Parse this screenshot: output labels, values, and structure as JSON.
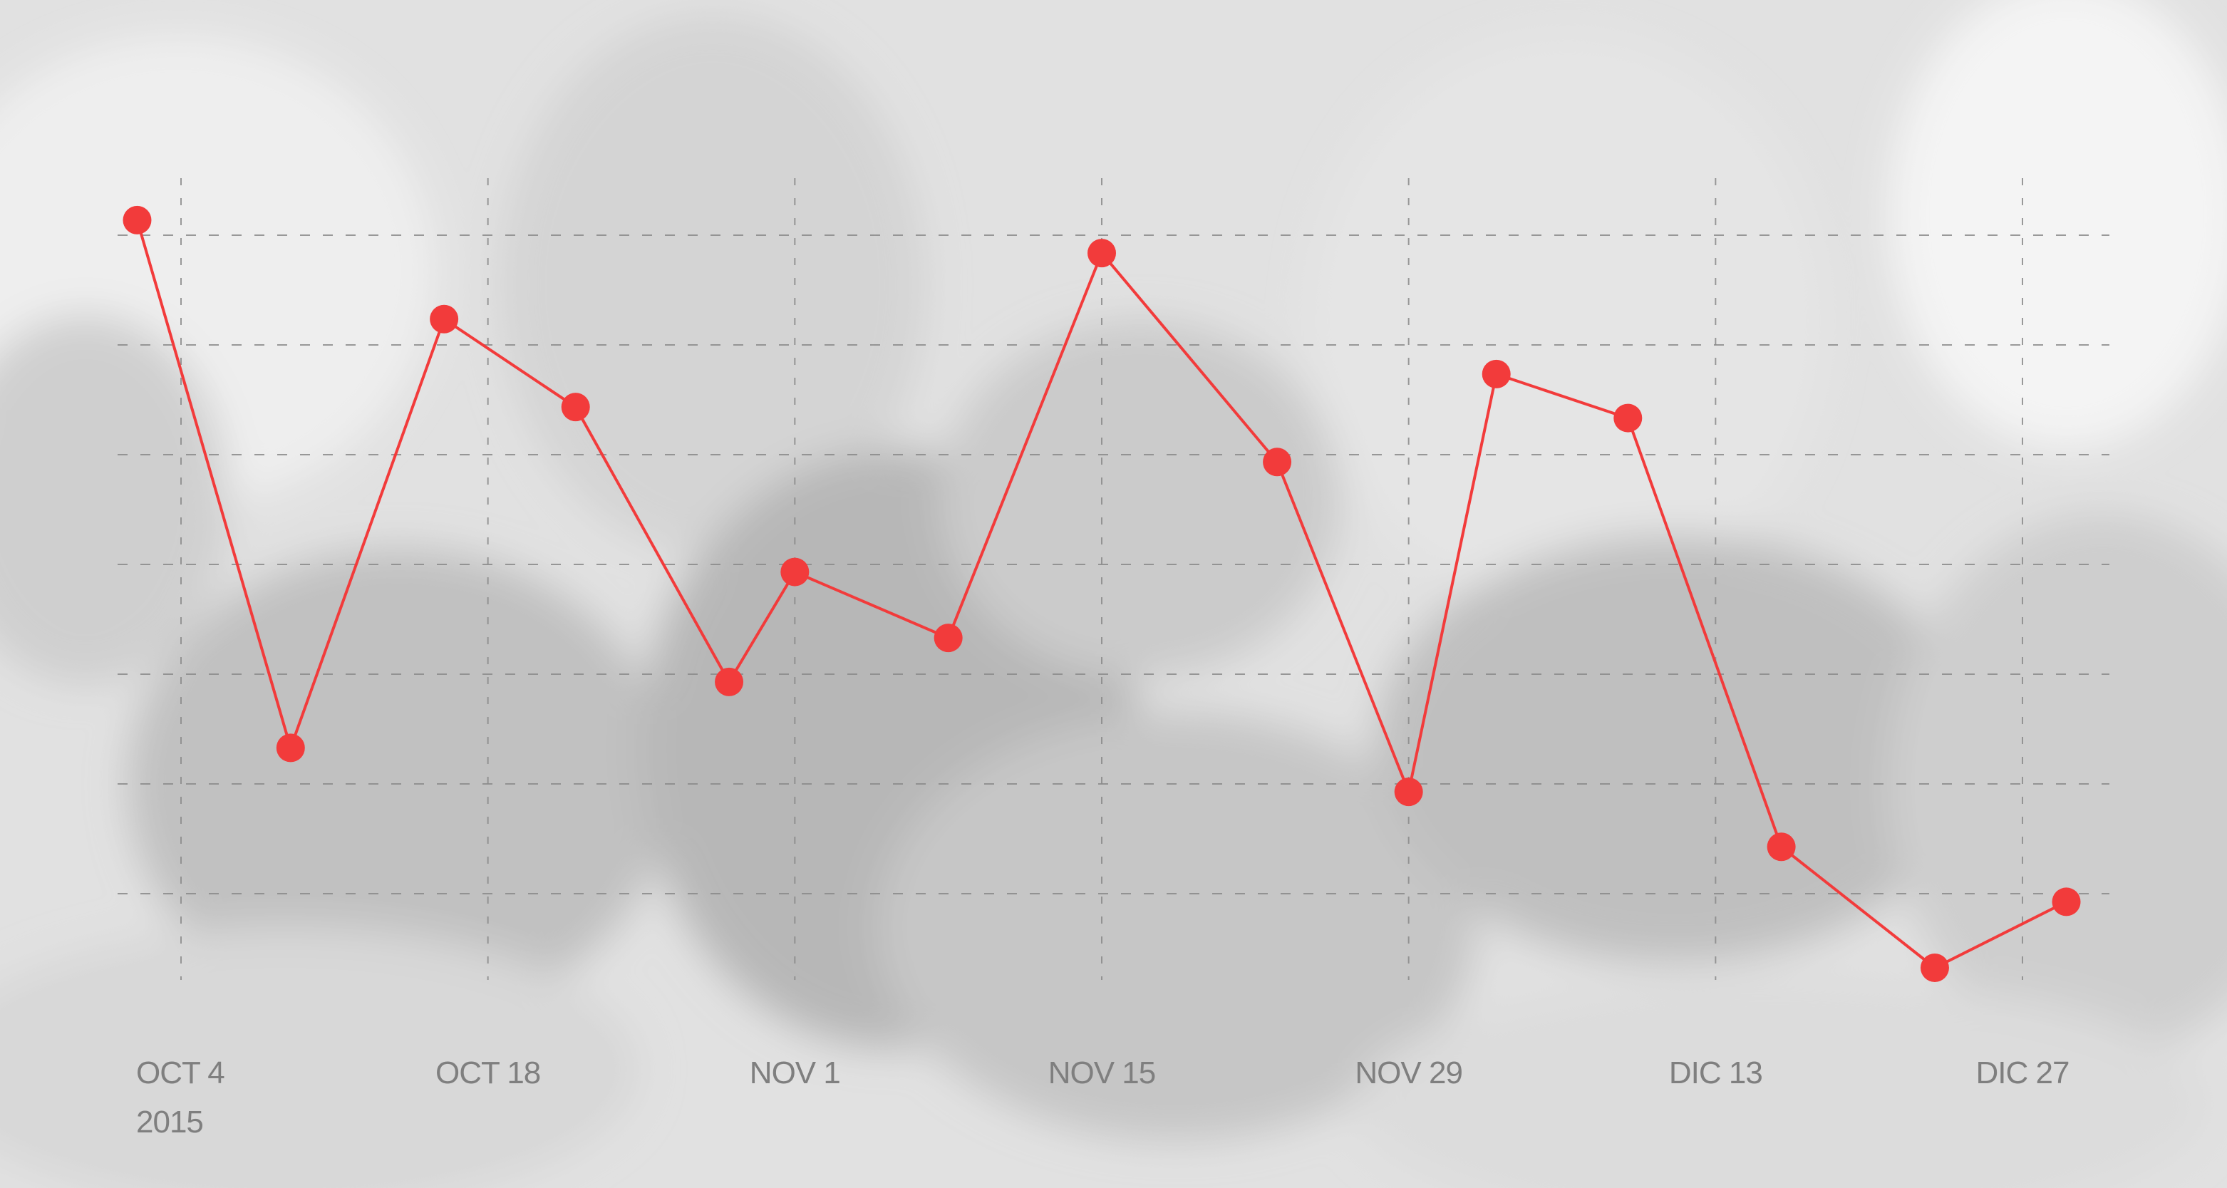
{
  "chart_data": {
    "type": "line",
    "title": "",
    "xlabel": "",
    "ylabel": "",
    "x_tick_labels": [
      "OCT 4",
      "OCT 18",
      "NOV 1",
      "NOV 15",
      "NOV 29",
      "DIC 13",
      "DIC 27"
    ],
    "x_tick_dates": [
      "2015-10-04",
      "2015-10-18",
      "2015-11-01",
      "2015-11-15",
      "2015-11-29",
      "2015-12-13",
      "2015-12-27"
    ],
    "year_label": "2015",
    "xlim": [
      "2015-10-04",
      "2015-12-27"
    ],
    "ylim": [
      0,
      7
    ],
    "grid": true,
    "y_ticks_visible": false,
    "legend": "none",
    "series": [
      {
        "color": "#f23b3b",
        "points": [
          {
            "x": "2015-10-02",
            "y": 6.8
          },
          {
            "x": "2015-10-09",
            "y": 2.0
          },
          {
            "x": "2015-10-16",
            "y": 5.9
          },
          {
            "x": "2015-10-22",
            "y": 5.1
          },
          {
            "x": "2015-10-29",
            "y": 2.6
          },
          {
            "x": "2015-11-01",
            "y": 3.6
          },
          {
            "x": "2015-11-08",
            "y": 3.0
          },
          {
            "x": "2015-11-15",
            "y": 6.5
          },
          {
            "x": "2015-11-23",
            "y": 4.6
          },
          {
            "x": "2015-11-29",
            "y": 1.6
          },
          {
            "x": "2015-12-03",
            "y": 5.4
          },
          {
            "x": "2015-12-09",
            "y": 5.0
          },
          {
            "x": "2015-12-16",
            "y": 1.1
          },
          {
            "x": "2015-12-23",
            "y": 0.0
          },
          {
            "x": "2015-12-29",
            "y": 0.6
          }
        ]
      }
    ]
  }
}
